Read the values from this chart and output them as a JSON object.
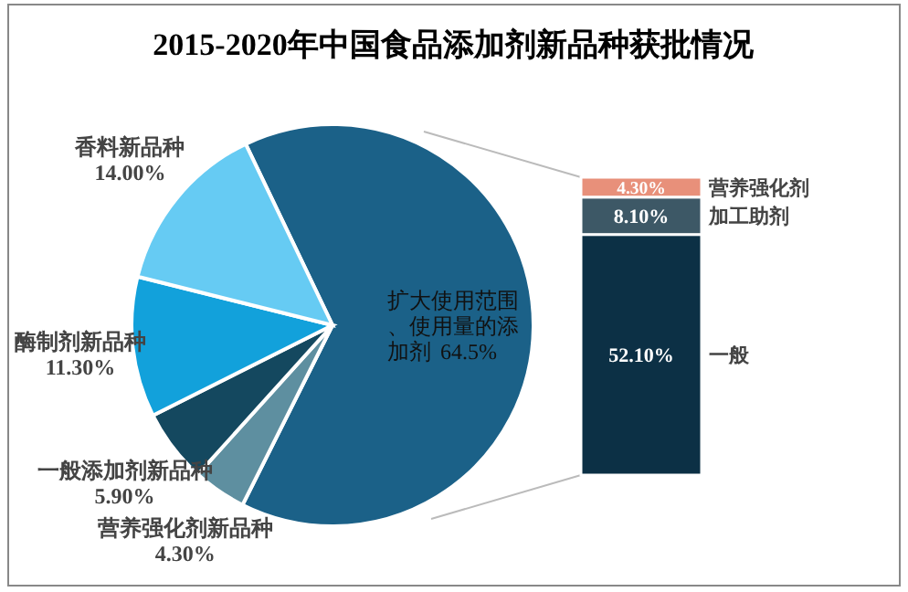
{
  "chart_data": [
    {
      "type": "pie",
      "title": "2015-2020年中国食品添加剂新品种获批情况",
      "categories": [
        "扩大使用范围、使用量的添加剂",
        "营养强化剂新品种",
        "一般添加剂新品种",
        "酶制剂新品种",
        "香料新品种"
      ],
      "values": [
        64.5,
        4.3,
        5.9,
        11.3,
        14.0
      ],
      "value_labels": [
        "64.5%",
        "4.30%",
        "5.90%",
        "11.30%",
        "14.00%"
      ],
      "colors": [
        "#1b6188",
        "#5e8fa0",
        "#14485f",
        "#12a1db",
        "#66cbf3"
      ]
    },
    {
      "type": "bar",
      "stacked": true,
      "categories": [
        null
      ],
      "series": [
        {
          "name": "一般",
          "color": "#0c3045",
          "values": [
            52.1
          ],
          "value_labels": [
            "52.10%"
          ]
        },
        {
          "name": "加工助剂",
          "color": "#3d5866",
          "values": [
            8.1
          ],
          "value_labels": [
            "8.10%"
          ]
        },
        {
          "name": "营养强化剂",
          "color": "#e8907a",
          "values": [
            4.3
          ],
          "value_labels": [
            "4.30%"
          ]
        }
      ]
    }
  ]
}
